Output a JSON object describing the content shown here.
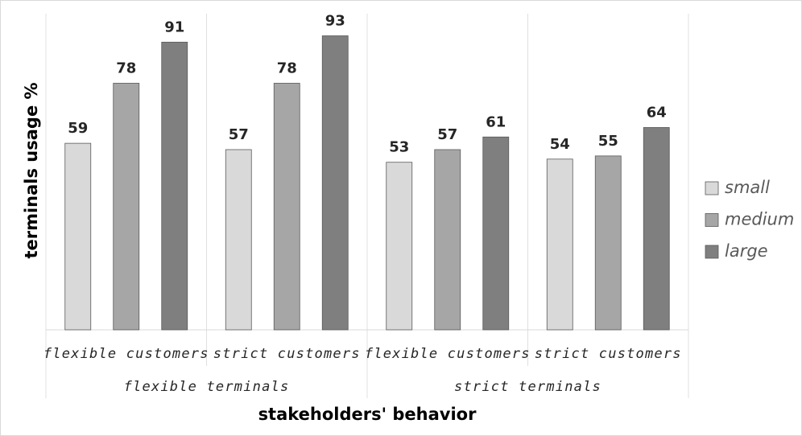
{
  "chart_data": {
    "type": "bar",
    "y_label": "terminals usage %",
    "x_label": "stakeholders' behavior",
    "categories": [
      "flexible customers",
      "strict customers",
      "flexible customers",
      "strict customers"
    ],
    "category_groups": [
      "flexible terminals",
      "strict terminals"
    ],
    "series": [
      {
        "name": "small",
        "color": "#d9d9d9",
        "values": [
          59,
          57,
          53,
          54
        ]
      },
      {
        "name": "medium",
        "color": "#a6a6a6",
        "values": [
          78,
          78,
          57,
          55
        ]
      },
      {
        "name": "large",
        "color": "#7f7f7f",
        "values": [
          91,
          93,
          61,
          64
        ]
      }
    ],
    "ylim": [
      0,
      100
    ],
    "legend": "right"
  }
}
